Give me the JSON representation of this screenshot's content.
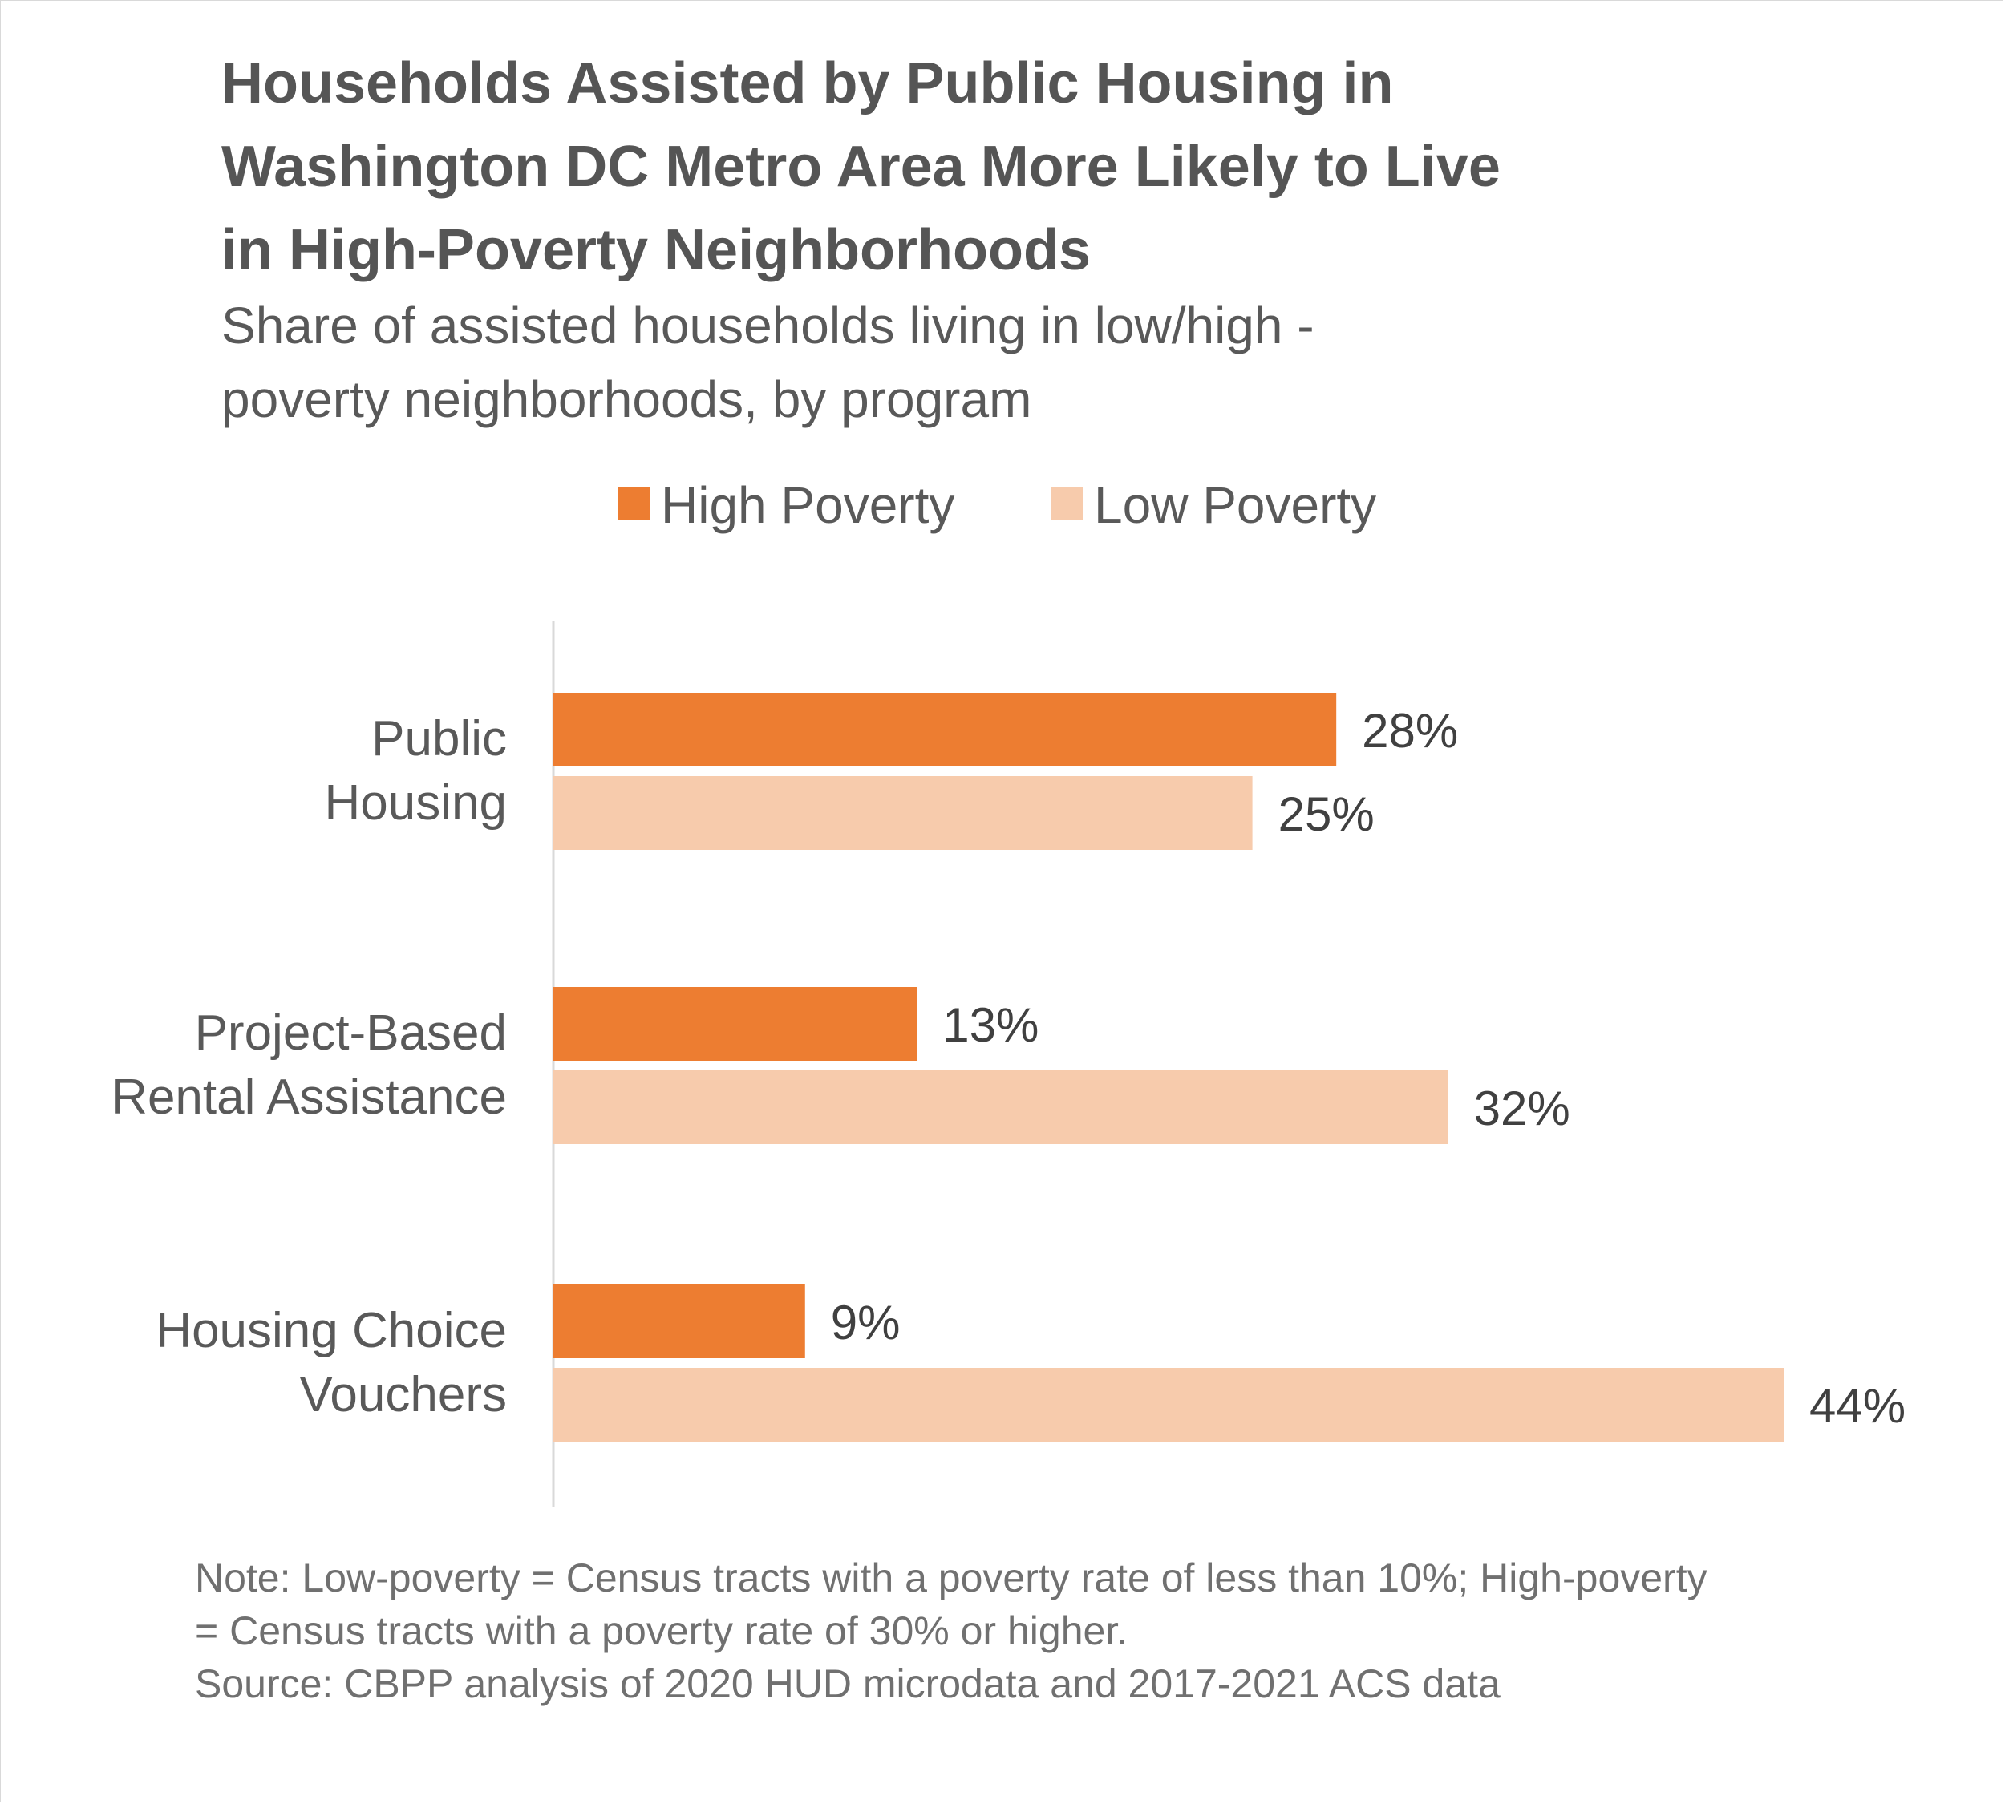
{
  "title_lines": [
    "Households Assisted by Public Housing in",
    "Washington DC Metro Area More Likely to Live",
    "in High-Poverty Neighborhoods"
  ],
  "subtitle_lines": [
    "Share of assisted households living in low/high -",
    "poverty neighborhoods, by program"
  ],
  "colors": {
    "high_poverty": "#ED7D31",
    "low_poverty": "#F7CBAC",
    "text_dark": "#404040",
    "axis": "#d9d9d9"
  },
  "chart_data": {
    "type": "bar",
    "orientation": "horizontal",
    "categories": [
      [
        "Public",
        "Housing"
      ],
      [
        "Project-Based",
        "Rental Assistance"
      ],
      [
        "Housing Choice",
        "Vouchers"
      ]
    ],
    "series": [
      {
        "name": "High Poverty",
        "values": [
          28,
          13,
          9
        ],
        "labels": [
          "28%",
          "13%",
          "9%"
        ]
      },
      {
        "name": "Low Poverty",
        "values": [
          25,
          32,
          44
        ],
        "labels": [
          "25%",
          "32%",
          "44%"
        ]
      }
    ],
    "xlim": [
      0,
      44
    ],
    "grid": false,
    "legend_position": "top-center"
  },
  "footnote_lines": [
    "Note: Low-poverty = Census tracts with a poverty rate of less than 10%; High-poverty",
    "= Census tracts with a poverty rate of 30% or higher.",
    "Source: CBPP analysis of 2020 HUD microdata and 2017-2021 ACS data"
  ]
}
